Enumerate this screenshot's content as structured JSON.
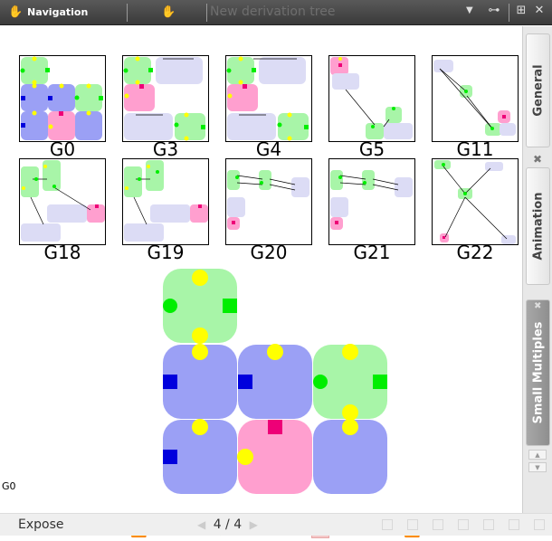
{
  "toolbar": {
    "title": "Navigation",
    "derivation_placeholder": "New derivation tree",
    "hand_icon_1": "hand-icon",
    "hand_icon_2": "hand-icon",
    "icons": [
      "dropdown-arrow-icon",
      "link-icon",
      "fit-window-icon",
      "close-icon"
    ]
  },
  "thumbnails": [
    {
      "label": "G0"
    },
    {
      "label": "G3"
    },
    {
      "label": "G4"
    },
    {
      "label": "G5"
    },
    {
      "label": "G11"
    },
    {
      "label": "G18"
    },
    {
      "label": "G19"
    },
    {
      "label": "G20"
    },
    {
      "label": "G21"
    },
    {
      "label": "G22"
    }
  ],
  "selected_graph": "G0",
  "player": {
    "buttons": [
      "first-icon",
      "rewind-icon",
      "play-icon",
      "stop-icon",
      "fast-forward-icon",
      "last-icon"
    ]
  },
  "status": {
    "expose_label": "Expose",
    "page_current": "4",
    "page_total": "4",
    "page_text": "4 / 4"
  },
  "sidetabs": {
    "general": "General",
    "animation": "Animation",
    "small_multiples": "Small Multiples"
  },
  "colors": {
    "green": "#a8f5a8",
    "blue": "#9ba0f5",
    "pink": "#ff9fcf",
    "lavender": "#dcdcf5",
    "yellow": "#ffff00",
    "port_blue": "#0000dd",
    "port_green": "#00ee00",
    "port_magenta": "#ee0077"
  }
}
